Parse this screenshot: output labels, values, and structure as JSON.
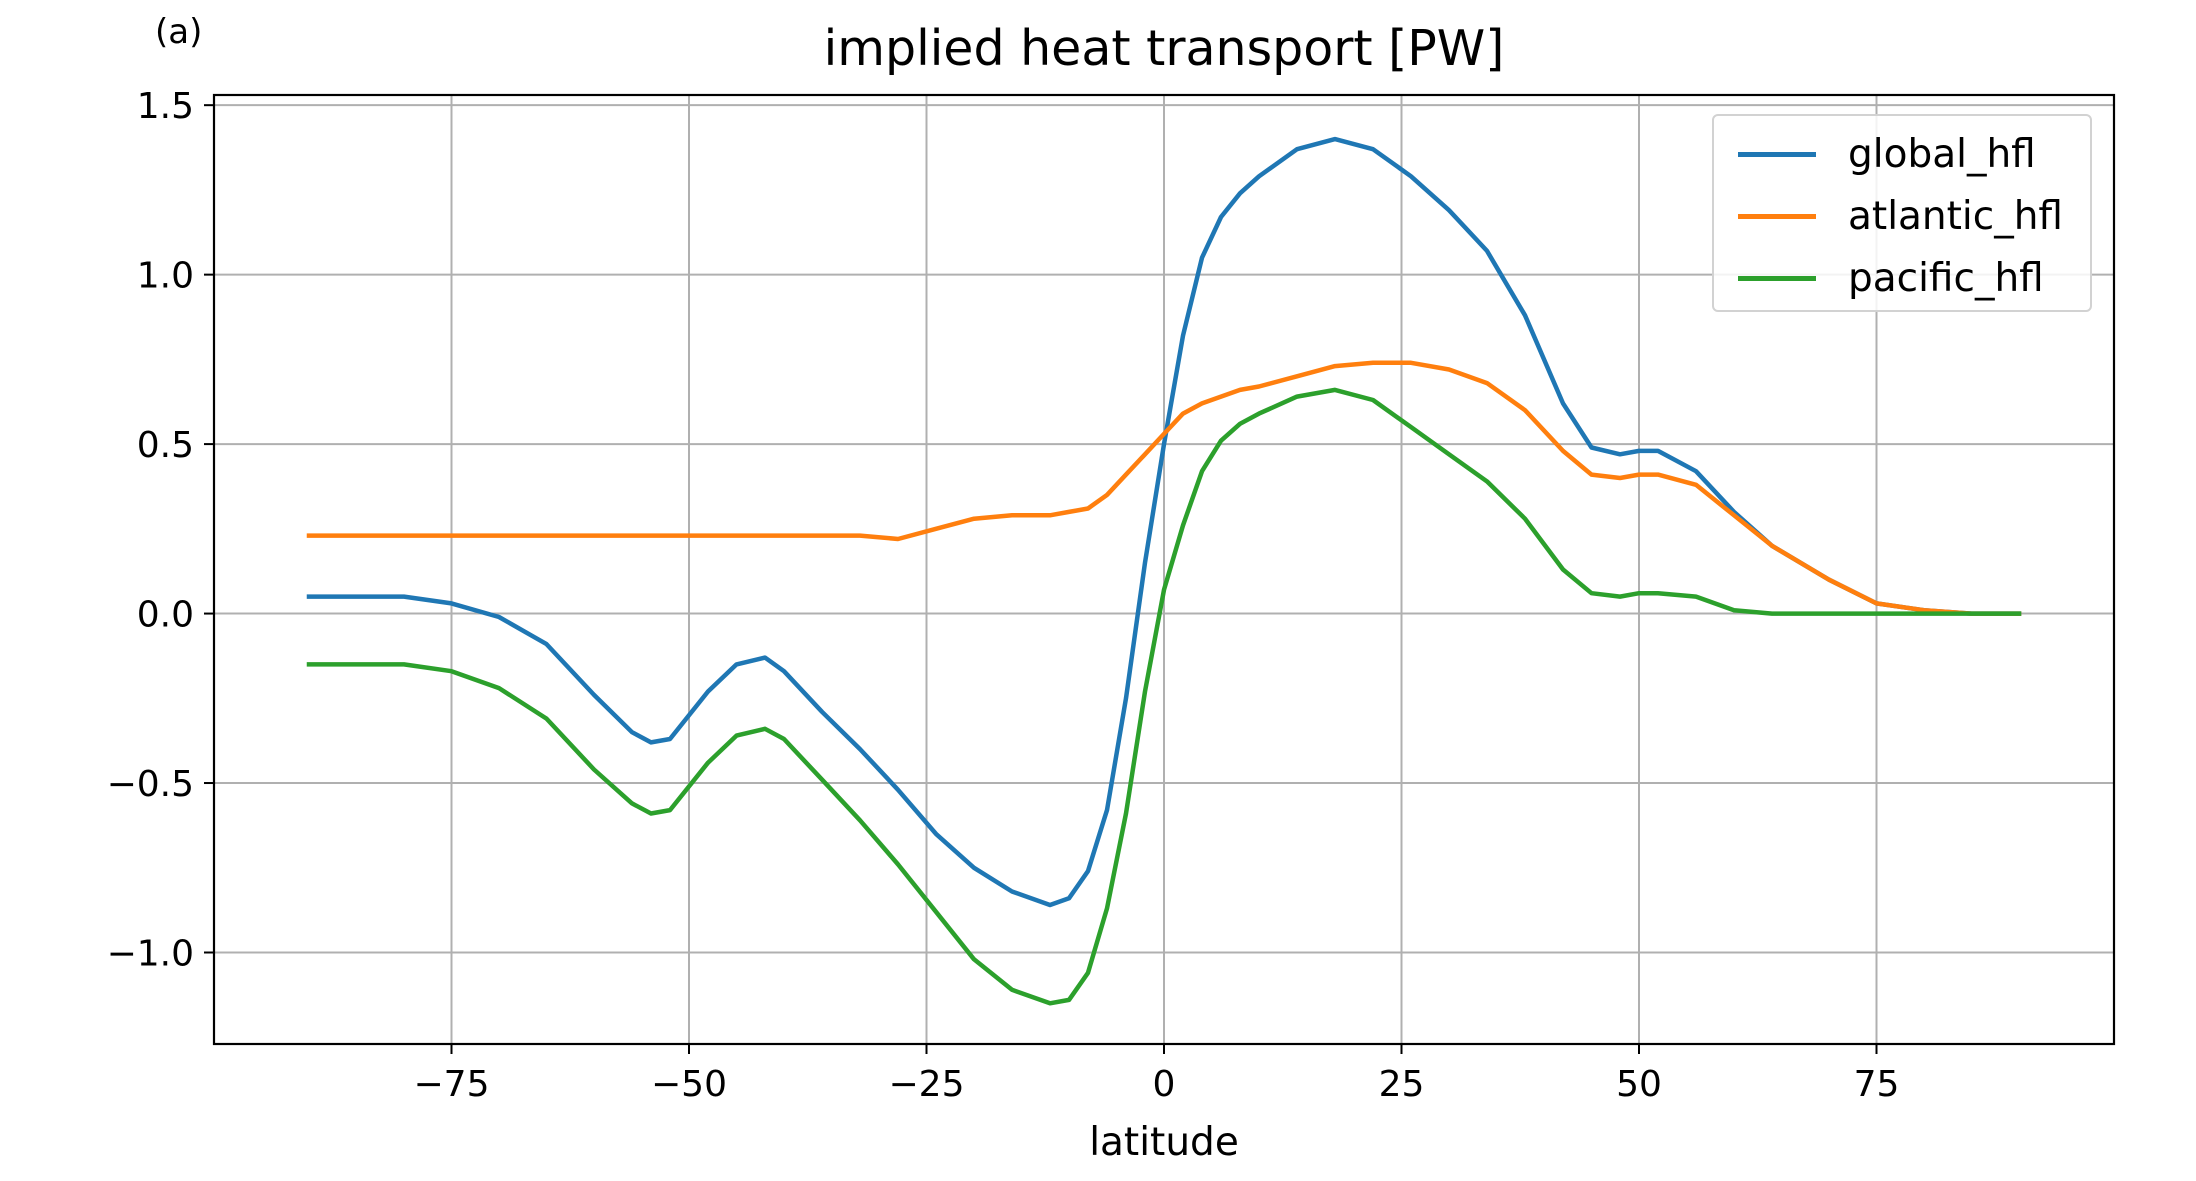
{
  "panel_label": "(a)",
  "chart_data": {
    "type": "line",
    "title": "implied heat transport [PW]",
    "xlabel": "latitude",
    "ylabel": "",
    "xlim": [
      -100,
      100
    ],
    "ylim": [
      -1.27,
      1.53
    ],
    "xticks": [
      -75,
      -50,
      -25,
      0,
      25,
      50,
      75
    ],
    "xtick_labels": [
      "−75",
      "−50",
      "−25",
      "0",
      "25",
      "50",
      "75"
    ],
    "yticks": [
      -1.0,
      -0.5,
      0.0,
      0.5,
      1.0,
      1.5
    ],
    "ytick_labels": [
      "−1.0",
      "−0.5",
      "0.0",
      "0.5",
      "1.0",
      "1.5"
    ],
    "grid": true,
    "legend_position": "upper right",
    "x": [
      -90,
      -85,
      -80,
      -75,
      -70,
      -65,
      -60,
      -56,
      -54,
      -52,
      -48,
      -45,
      -42,
      -40,
      -36,
      -32,
      -28,
      -24,
      -20,
      -16,
      -12,
      -10,
      -8,
      -6,
      -4,
      -2,
      0,
      2,
      4,
      6,
      8,
      10,
      14,
      18,
      22,
      26,
      30,
      34,
      38,
      42,
      45,
      48,
      50,
      52,
      56,
      60,
      64,
      70,
      75,
      80,
      85,
      90
    ],
    "series": [
      {
        "name": "global_hfl",
        "color": "#1f77b4",
        "values": [
          0.05,
          0.05,
          0.05,
          0.03,
          -0.01,
          -0.09,
          -0.24,
          -0.35,
          -0.38,
          -0.37,
          -0.23,
          -0.15,
          -0.13,
          -0.17,
          -0.29,
          -0.4,
          -0.52,
          -0.65,
          -0.75,
          -0.82,
          -0.86,
          -0.84,
          -0.76,
          -0.58,
          -0.25,
          0.15,
          0.5,
          0.82,
          1.05,
          1.17,
          1.24,
          1.29,
          1.37,
          1.4,
          1.37,
          1.29,
          1.19,
          1.07,
          0.88,
          0.62,
          0.49,
          0.47,
          0.48,
          0.48,
          0.42,
          0.3,
          0.2,
          0.1,
          0.03,
          0.01,
          0.0,
          0.0
        ]
      },
      {
        "name": "atlantic_hfl",
        "color": "#ff7f0e",
        "values": [
          0.23,
          0.23,
          0.23,
          0.23,
          0.23,
          0.23,
          0.23,
          0.23,
          0.23,
          0.23,
          0.23,
          0.23,
          0.23,
          0.23,
          0.23,
          0.23,
          0.22,
          0.25,
          0.28,
          0.29,
          0.29,
          0.3,
          0.31,
          0.35,
          0.41,
          0.47,
          0.53,
          0.59,
          0.62,
          0.64,
          0.66,
          0.67,
          0.7,
          0.73,
          0.74,
          0.74,
          0.72,
          0.68,
          0.6,
          0.48,
          0.41,
          0.4,
          0.41,
          0.41,
          0.38,
          0.29,
          0.2,
          0.1,
          0.03,
          0.01,
          0.0,
          0.0
        ]
      },
      {
        "name": "pacific_hfl",
        "color": "#2ca02c",
        "values": [
          -0.15,
          -0.15,
          -0.15,
          -0.17,
          -0.22,
          -0.31,
          -0.46,
          -0.56,
          -0.59,
          -0.58,
          -0.44,
          -0.36,
          -0.34,
          -0.37,
          -0.49,
          -0.61,
          -0.74,
          -0.88,
          -1.02,
          -1.11,
          -1.15,
          -1.14,
          -1.06,
          -0.87,
          -0.59,
          -0.23,
          0.07,
          0.26,
          0.42,
          0.51,
          0.56,
          0.59,
          0.64,
          0.66,
          0.63,
          0.55,
          0.47,
          0.39,
          0.28,
          0.13,
          0.06,
          0.05,
          0.06,
          0.06,
          0.05,
          0.01,
          0.0,
          0.0,
          0.0,
          0.0,
          0.0,
          0.0
        ]
      }
    ]
  }
}
